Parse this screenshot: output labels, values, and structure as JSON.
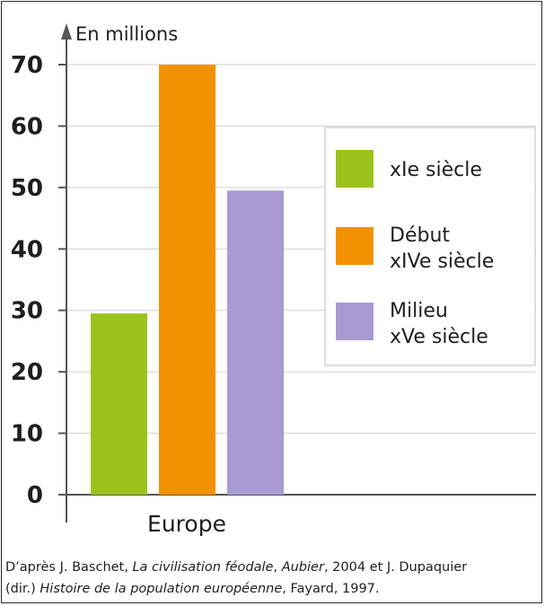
{
  "chart_data": {
    "type": "bar",
    "categories": [
      "Europe"
    ],
    "ylabel": "En millions",
    "ylim": [
      0,
      70
    ],
    "yticks": [
      0,
      10,
      20,
      30,
      40,
      50,
      60,
      70
    ],
    "grid": true,
    "legend_position": "right",
    "series": [
      {
        "name": "XIe siècle",
        "name_lines": [
          "xIe siècle"
        ],
        "values": [
          29.5
        ],
        "color": "#9bc31c"
      },
      {
        "name": "Début XIVe siècle",
        "name_lines": [
          "Début",
          "xIVe siècle"
        ],
        "values": [
          70
        ],
        "color": "#f39200"
      },
      {
        "name": "Milieu XVe siècle",
        "name_lines": [
          "Milieu",
          "xVe siècle"
        ],
        "values": [
          49.5
        ],
        "color": "#a99ad3"
      }
    ]
  },
  "source": {
    "line1_prefix": "D’après J. Baschet, ",
    "line1_title": "La civilisation féodale",
    "line1_mid": ", ",
    "line1_publisher": "Aubier",
    "line1_suffix": ", 2004 et J. Dupaquier",
    "line2_prefix": "(dir.) ",
    "line2_title": "Histoire de la population européenne",
    "line2_suffix": ", Fayard, 1997."
  }
}
